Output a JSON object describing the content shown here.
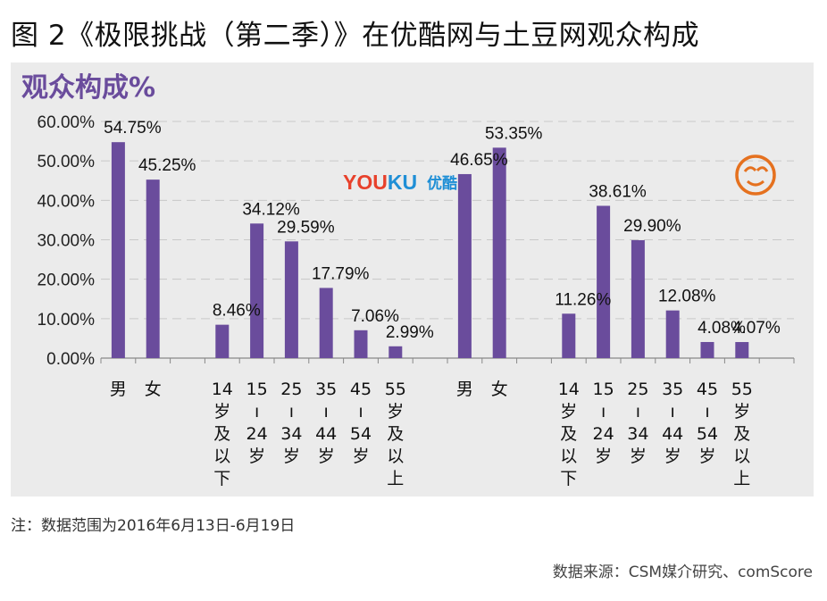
{
  "title": "图 2《极限挑战（第二季）》在优酷网与土豆网观众构成",
  "note": "注：数据范围为2016年6月13日-6月19日",
  "source": "数据来源：CSM媒介研究、comScore",
  "bar_color": "#6a4c9c",
  "ylabel_color": "#6a4c9c",
  "youku_logo": {
    "you": "YOU",
    "ku": "KU",
    "cn": "优酷",
    "you_color": "#e8412b",
    "ku_color": "#1f8fd6"
  },
  "tudou_logo_icon": "tudou-smiley-icon",
  "tudou_logo_color": "#e5711f",
  "chart_data": {
    "type": "bar",
    "ylabel": "观众构成%",
    "ylim": [
      0,
      60
    ],
    "yticks": [
      "0.00%",
      "10.00%",
      "20.00%",
      "30.00%",
      "40.00%",
      "50.00%",
      "60.00%"
    ],
    "grid": true,
    "groups": [
      {
        "platform_logo": "youku",
        "categories": [
          "男",
          "女",
          "14岁及以下",
          "15-24岁",
          "25-34岁",
          "35-44岁",
          "45-54岁",
          "55岁及以上"
        ],
        "values": [
          54.75,
          45.25,
          8.46,
          34.12,
          29.59,
          17.79,
          7.06,
          2.99
        ],
        "labels": [
          "54.75%",
          "45.25%",
          "8.46%",
          "34.12%",
          "29.59%",
          "17.79%",
          "7.06%",
          "2.99%"
        ]
      },
      {
        "platform_logo": "tudou",
        "categories": [
          "男",
          "女",
          "14岁及以下",
          "15-24岁",
          "25-34岁",
          "35-44岁",
          "45-54岁",
          "55岁及以上"
        ],
        "values": [
          46.65,
          53.35,
          11.26,
          38.61,
          29.9,
          12.08,
          4.08,
          4.07
        ],
        "labels": [
          "46.65%",
          "53.35%",
          "11.26%",
          "38.61%",
          "29.90%",
          "12.08%",
          "4.08%",
          "4.07%"
        ]
      }
    ]
  }
}
